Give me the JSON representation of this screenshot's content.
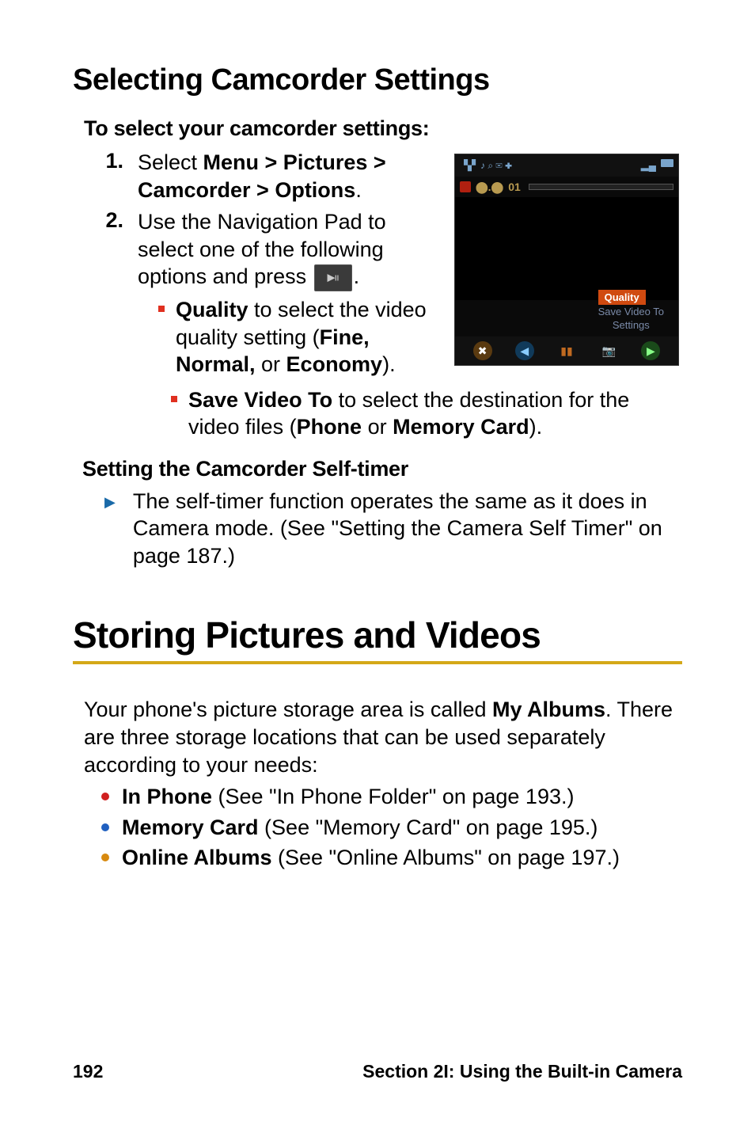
{
  "heading_camcorder": "Selecting Camcorder Settings",
  "sub_select": "To select your camcorder settings:",
  "steps": {
    "s1_num": "1.",
    "s1_pre": "Select ",
    "s1_bold": "Menu > Pictures > Camcorder > Options",
    "s1_post": ".",
    "s2_num": "2.",
    "s2_pre": "Use the Navigation Pad to select one of the following options and press ",
    "s2_post": "."
  },
  "quality": {
    "b": "Quality",
    "mid": " to select the video quality setting (",
    "b2": "Fine, Normal,",
    "mid2": " or ",
    "b3": "Economy",
    "post": ")."
  },
  "saveto": {
    "b": "Save Video To",
    "mid": " to select the destination for the video files (",
    "b2": "Phone",
    "mid2": " or ",
    "b3": "Memory Card",
    "post": ")."
  },
  "h4_selftimer": "Setting the Camcorder Self-timer",
  "selftimer_body": "The self-timer function operates the same as it does in Camera mode. (See \"Setting the Camera Self Timer\" on page 187.)",
  "h1_storing": "Storing Pictures and Videos",
  "intro_pre": "Your phone's picture storage area is called ",
  "intro_bold": "My Albums",
  "intro_post": ". There are three storage locations that can be used separately according to your needs:",
  "dots": {
    "d1_b": "In Phone",
    "d1_post": " (See \"In Phone Folder\" on page 193.)",
    "d2_b": "Memory Card",
    "d2_post": " (See \"Memory Card\" on page 195.)",
    "d3_b": "Online Albums",
    "d3_post": " (See \"Online Albums\" on page 197.)"
  },
  "dot_colors": [
    "#d02020",
    "#2060c0",
    "#d88a10"
  ],
  "footer_page": "192",
  "footer_section": "Section 2I: Using the Built-in Camera",
  "screenshot": {
    "time_label": "01",
    "menu_hl": "Quality",
    "menu_i1": "Save Video To",
    "menu_i2": "Settings",
    "status_icons_text": "♪ ⌕ ✉ ✚",
    "row2_icons": "⬤"
  },
  "colors": {
    "gold_rule": "#d4a818",
    "red_square": "#e03020",
    "arrow": "#1a6aa8"
  }
}
